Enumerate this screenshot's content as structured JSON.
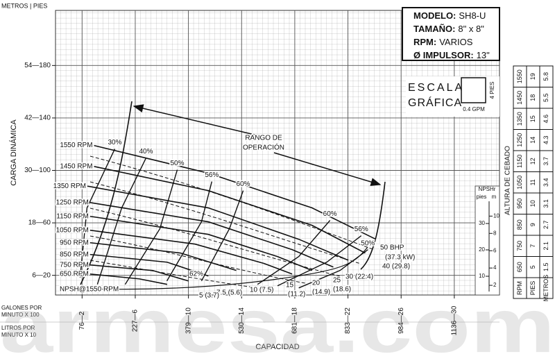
{
  "chart_data": {
    "type": "pump-curve",
    "y_header": "METROS | PIES",
    "ylabel": "CARGA DINÁMICA",
    "xlabel": "CAPACIDAD",
    "x_units": [
      "GALONES POR",
      "MINUTO X 100",
      "LITROS POR",
      "MINUTO X 10"
    ],
    "xlim": [
      0,
      33.4
    ],
    "ylim": [
      5,
      222
    ],
    "xticks": [
      {
        "value": 2,
        "label": "76—2"
      },
      {
        "value": 6,
        "label": "227—6"
      },
      {
        "value": 10,
        "label": "379—10"
      },
      {
        "value": 14,
        "label": "530—14"
      },
      {
        "value": 18,
        "label": "681—18"
      },
      {
        "value": 22,
        "label": "833—22"
      },
      {
        "value": 26,
        "label": "984—26"
      },
      {
        "value": 30,
        "label": "1136—30"
      }
    ],
    "yticks": [
      {
        "value": 20,
        "label": "6—20"
      },
      {
        "value": 60,
        "label": "18—60"
      },
      {
        "value": 100,
        "label": "30—100"
      },
      {
        "value": 140,
        "label": "42—140"
      },
      {
        "value": 180,
        "label": "54—180"
      }
    ],
    "grid": true,
    "series": [
      {
        "name": "1550 RPM",
        "x": [
          2.9,
          11.5,
          19.3,
          24.1
        ],
        "values": [
          119,
          97.9,
          71.4,
          47.5
        ]
      },
      {
        "name": "1450 RPM",
        "x": [
          2.9,
          11.5,
          19.3,
          23.3
        ],
        "values": [
          103,
          84.6,
          58.1,
          37
        ]
      },
      {
        "name": "1350 RPM",
        "x": [
          2.4,
          11.5,
          18.3,
          22
        ],
        "values": [
          88,
          71.4,
          47.5,
          31.6
        ]
      },
      {
        "name": "1250 RPM",
        "x": [
          2.6,
          11.5,
          17.8,
          20.9
        ],
        "values": [
          75.5,
          60.8,
          39.6,
          26.3
        ]
      },
      {
        "name": "1150 RPM",
        "x": [
          2.6,
          11.5,
          16.7,
          19.3
        ],
        "values": [
          65,
          51.2,
          34.3,
          23.7
        ]
      },
      {
        "name": "1050 RPM",
        "x": [
          2.6,
          10.5,
          15.7,
          17.8
        ],
        "values": [
          54.4,
          43.8,
          29,
          21
        ]
      },
      {
        "name": "950 RPM",
        "x": [
          2.6,
          9.4,
          13.6
        ],
        "values": [
          44.9,
          37,
          23.7
        ]
      },
      {
        "name": "850 RPM",
        "x": [
          2.6,
          8.4,
          11.5
        ],
        "values": [
          35.9,
          30,
          19.5
        ]
      },
      {
        "name": "750 RPM",
        "x": [
          2.6,
          7.3,
          10
        ],
        "values": [
          27.9,
          23.7,
          15.7
        ]
      },
      {
        "name": "650 RPM",
        "x": [
          2.6,
          6.3,
          8.4
        ],
        "values": [
          21,
          17.3,
          13.1
        ]
      }
    ],
    "efficiency": [
      {
        "name": "30%",
        "x": [
          1.85,
          2.37,
          4.46
        ],
        "values": [
          18.4,
          71.4,
          116.4
        ]
      },
      {
        "name": "40%",
        "x": [
          3.15,
          4.98,
          6.81
        ],
        "values": [
          13.1,
          71.4,
          109.5
        ]
      },
      {
        "name": "50%",
        "x": [
          5.24,
          7.85,
          9.16
        ],
        "values": [
          13.1,
          55.5,
          100.5
        ]
      },
      {
        "name": "56%",
        "x": [
          8.38,
          10.98,
          11.76
        ],
        "values": [
          15.7,
          60.8,
          91.5
        ]
      },
      {
        "name": "60%",
        "x": [
          10.98,
          13.08,
          14.12
        ],
        "values": [
          15.7,
          55.5,
          84.6
        ]
      },
      {
        "name": "60%",
        "x": [
          15.2,
          18.3,
          20.65
        ],
        "values": [
          13.1,
          34.3,
          61.9
        ]
      },
      {
        "name": "56%",
        "x": [
          16.7,
          20.4,
          23
        ],
        "values": [
          12,
          30,
          50.2
        ]
      },
      {
        "name": "50%",
        "x": [
          18.3,
          21.4,
          23.5
        ],
        "values": [
          10.4,
          23.7,
          39.6
        ]
      }
    ],
    "peak_label": "62%",
    "npsh_label": "NPSH@1550 RPM",
    "bhp_labels": [
      "50 BHP",
      "(37.3 kW)",
      "40 (29.8)",
      "30 (22.4)",
      "25",
      "(18.6)",
      "20",
      "(14.9)",
      "15",
      "(11.2)",
      "10 (7.5)",
      "7.5 (5.6)",
      "5 (3.7)"
    ],
    "range_label": [
      "RANGO DE",
      "OPERACIÓN"
    ],
    "info": [
      {
        "label": "MODELO:",
        "value": "SH8-U"
      },
      {
        "label": "TAMAÑO:",
        "value": "8\" x 8\""
      },
      {
        "label": "RPM:",
        "value": "VARIOS"
      },
      {
        "label": "Ø IMPULSOR:",
        "value": "13\""
      }
    ],
    "scale": {
      "title": [
        "ESCALA",
        "GRÁFICA"
      ],
      "height": "4 PIES",
      "width": "0.4 GPM"
    },
    "npshr": {
      "title": "NPSHr",
      "feet_label": "pies",
      "meters_label": "m",
      "ylim": [
        0,
        40
      ],
      "feet_ticks": [
        10,
        20,
        30
      ],
      "meter_ticks": [
        2,
        4,
        6,
        8,
        10
      ]
    },
    "priming_table": {
      "title": "ALTURA DE CEBADO",
      "headers": [
        "RPM",
        "PIES",
        "METROS"
      ],
      "rows": [
        [
          650,
          5,
          1.5
        ],
        [
          750,
          7,
          2.1
        ],
        [
          850,
          9,
          2.7
        ],
        [
          950,
          10,
          3.1
        ],
        [
          1050,
          11,
          3.4
        ],
        [
          1150,
          12,
          3.7
        ],
        [
          1250,
          14,
          4.3
        ],
        [
          1350,
          15,
          4.6
        ],
        [
          1450,
          18,
          5.5
        ],
        [
          1550,
          19,
          5.8
        ]
      ]
    }
  },
  "watermark": "armesa.com"
}
